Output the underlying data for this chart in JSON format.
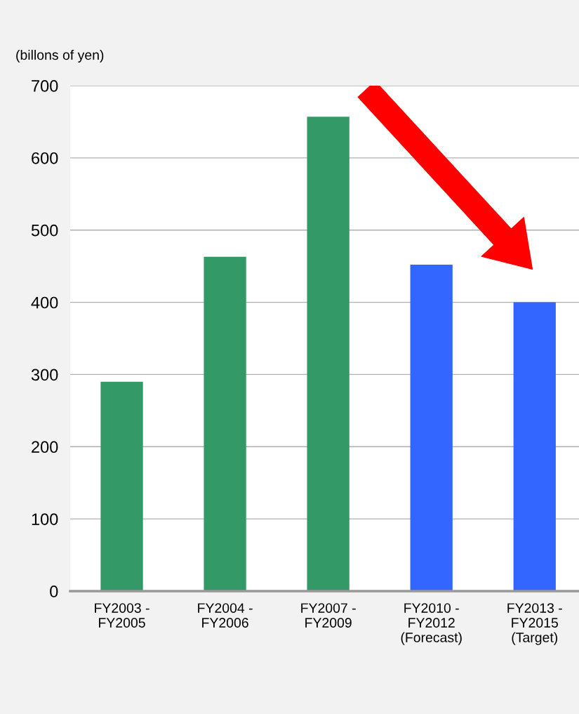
{
  "chart_data": {
    "type": "bar",
    "ylabel": "(billons of yen)",
    "categories": [
      "FY2003 -\nFY2005",
      "FY2004 -\nFY2006",
      "FY2007 -\nFY2009",
      "FY2010 -\nFY2012\n(Forecast)",
      "FY2013 -\nFY2015\n(Target)"
    ],
    "values": [
      290,
      463,
      657,
      452,
      400
    ],
    "colors": [
      "#339966",
      "#339966",
      "#339966",
      "#3366ff",
      "#3366ff"
    ],
    "ylim": [
      0,
      700
    ],
    "yticks": [
      0,
      100,
      200,
      300,
      400,
      500,
      600,
      700
    ],
    "grid": "y",
    "legend": false
  }
}
